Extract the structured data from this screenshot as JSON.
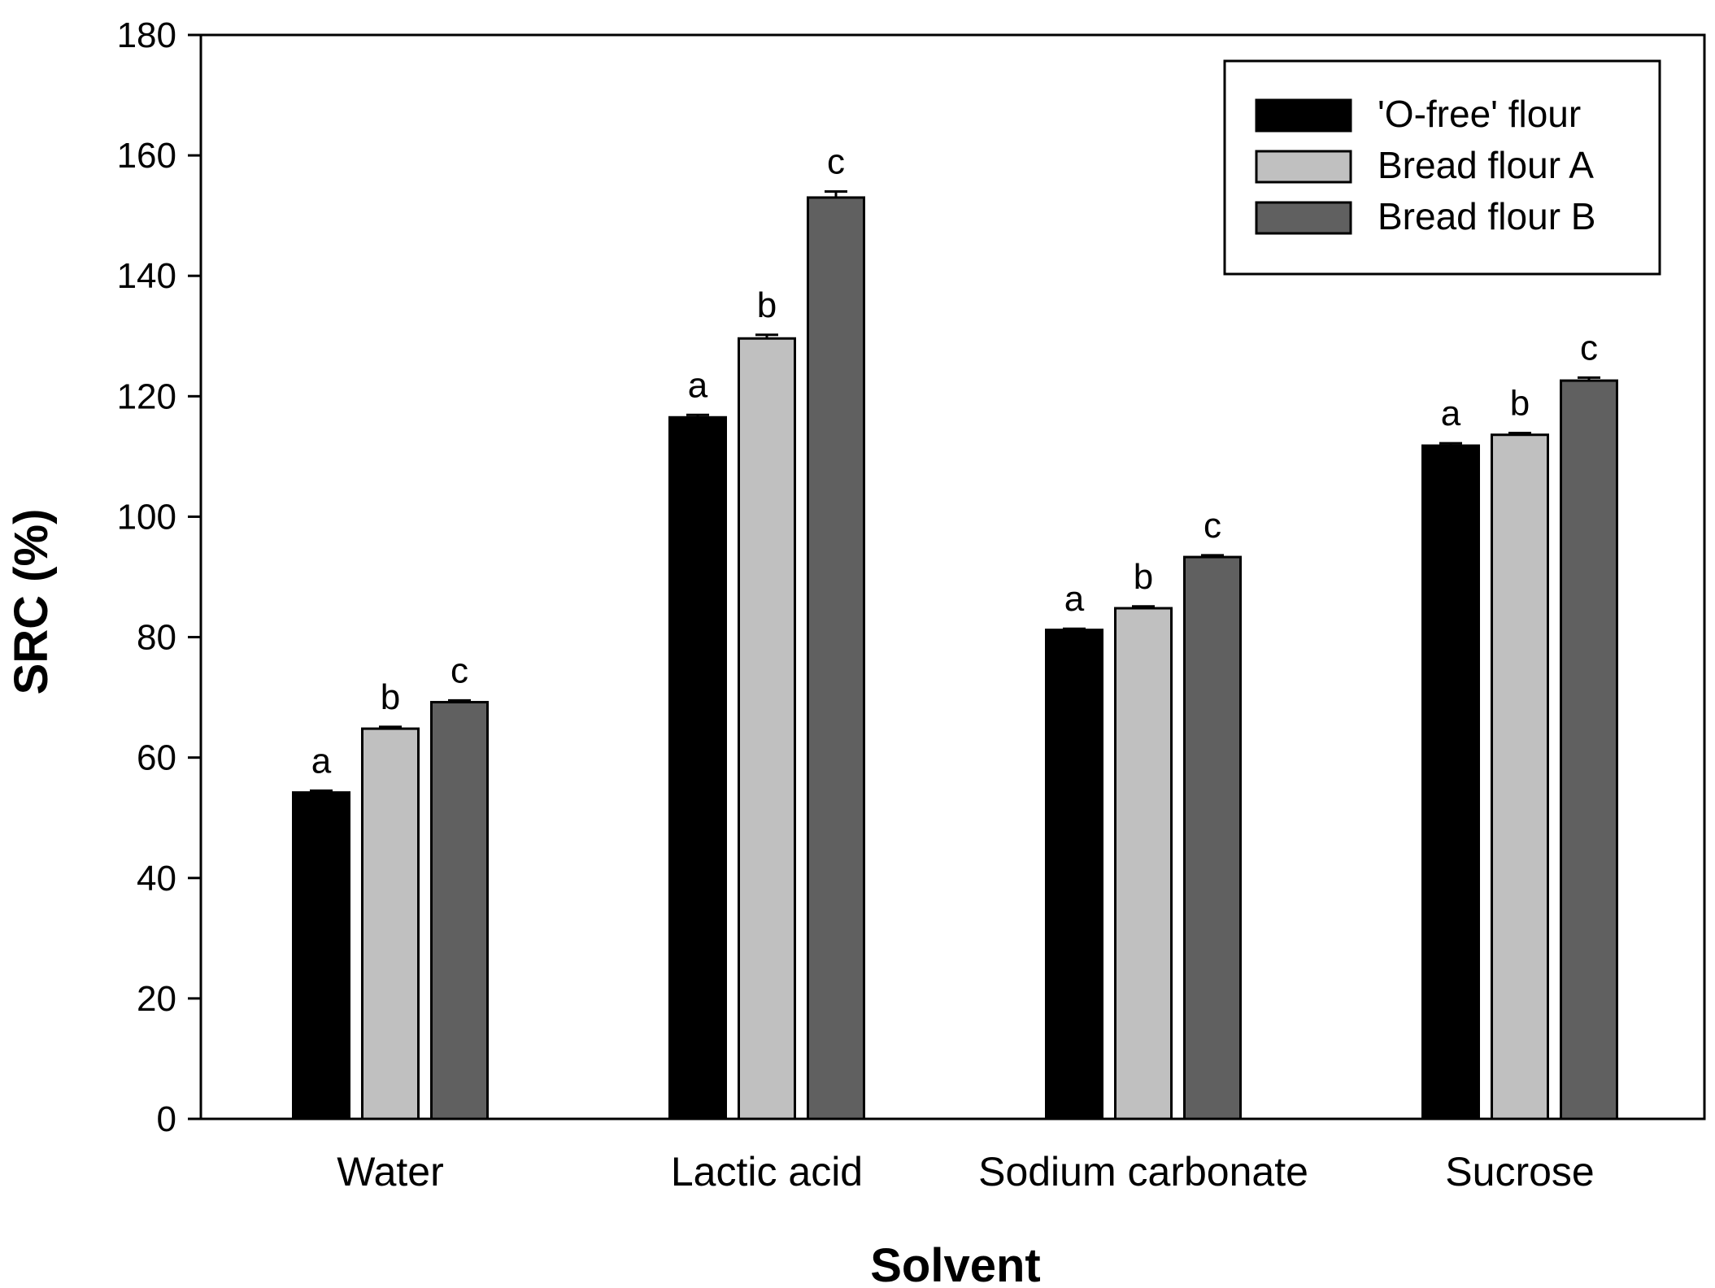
{
  "chart_data": {
    "type": "bar",
    "xlabel": "Solvent",
    "ylabel": "SRC (%)",
    "ylim": [
      0,
      180
    ],
    "yticks": [
      0,
      20,
      40,
      60,
      80,
      100,
      120,
      140,
      160,
      180
    ],
    "categories": [
      "Water",
      "Lactic acid",
      "Sodium carbonate",
      "Sucrose"
    ],
    "series": [
      {
        "name": "'O-free' flour",
        "color": "#000000",
        "values": [
          54.2,
          116.5,
          81.2,
          111.8
        ],
        "errors": [
          0.3,
          0.4,
          0.2,
          0.4
        ],
        "significance": [
          "a",
          "a",
          "a",
          "a"
        ]
      },
      {
        "name": "Bread flour A",
        "color": "#c0c0c0",
        "values": [
          64.8,
          129.6,
          84.8,
          113.6
        ],
        "errors": [
          0.3,
          0.6,
          0.3,
          0.3
        ],
        "significance": [
          "b",
          "b",
          "b",
          "b"
        ]
      },
      {
        "name": "Bread flour B",
        "color": "#606060",
        "values": [
          69.2,
          153.0,
          93.3,
          122.6
        ],
        "errors": [
          0.3,
          1.0,
          0.3,
          0.5
        ],
        "significance": [
          "c",
          "c",
          "c",
          "c"
        ]
      }
    ],
    "legend_position": "top-right",
    "grid": false
  }
}
